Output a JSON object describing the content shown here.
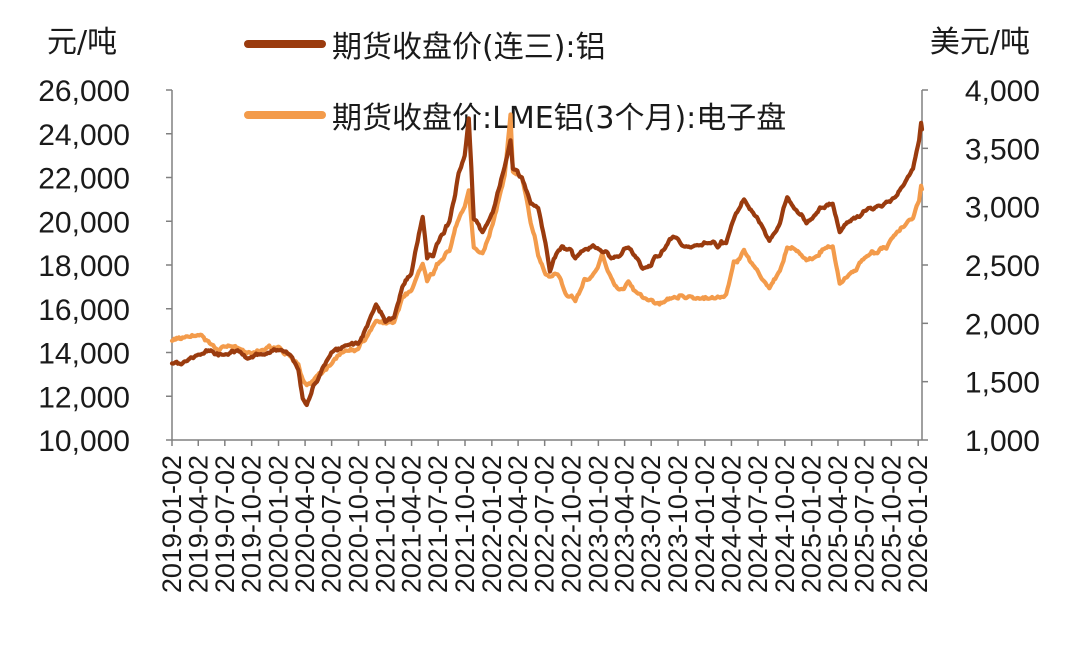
{
  "chart_data": {
    "type": "line",
    "title": "",
    "left_axis": {
      "unit": "元/吨",
      "ylim": [
        10000,
        26000
      ],
      "ticks": [
        10000,
        12000,
        14000,
        16000,
        18000,
        20000,
        22000,
        24000,
        26000
      ],
      "tick_labels": [
        "10,000",
        "12,000",
        "14,000",
        "16,000",
        "18,000",
        "20,000",
        "22,000",
        "24,000",
        "26,000"
      ]
    },
    "right_axis": {
      "unit": "美元/吨",
      "ylim": [
        1000,
        4000
      ],
      "ticks": [
        1000,
        1500,
        2000,
        2500,
        3000,
        3500,
        4000
      ],
      "tick_labels": [
        "1,000",
        "1,500",
        "2,000",
        "2,500",
        "3,000",
        "3,500",
        "4,000"
      ]
    },
    "x_axis": {
      "start": "2019-01-02",
      "end": "2026-01-15",
      "tick_labels": [
        "2019-01-02",
        "2019-04-02",
        "2019-07-02",
        "2019-10-02",
        "2020-01-02",
        "2020-04-02",
        "2020-07-02",
        "2020-10-02",
        "2021-01-02",
        "2021-04-02",
        "2021-07-02",
        "2021-10-02",
        "2022-01-02",
        "2022-04-02",
        "2022-07-02",
        "2022-10-02",
        "2023-01-02",
        "2023-04-02",
        "2023-07-02",
        "2023-10-02",
        "2024-01-02",
        "2024-04-02",
        "2024-07-02",
        "2024-10-02",
        "2025-01-02",
        "2025-04-02",
        "2025-07-02",
        "2025-10-02",
        "2026-01-02"
      ]
    },
    "legend_position": "top",
    "grid": false,
    "series": [
      {
        "name": "期货收盘价(连三):铝",
        "axis": "left",
        "color": "#9a3b0e",
        "points": [
          [
            "2019-01-02",
            13500
          ],
          [
            "2019-02-15",
            13600
          ],
          [
            "2019-04-01",
            13900
          ],
          [
            "2019-05-15",
            14100
          ],
          [
            "2019-07-01",
            13900
          ],
          [
            "2019-08-15",
            14100
          ],
          [
            "2019-10-01",
            13800
          ],
          [
            "2019-11-15",
            13900
          ],
          [
            "2020-01-02",
            14100
          ],
          [
            "2020-02-10",
            13900
          ],
          [
            "2020-03-10",
            13200
          ],
          [
            "2020-03-25",
            11900
          ],
          [
            "2020-04-08",
            11600
          ],
          [
            "2020-05-01",
            12500
          ],
          [
            "2020-06-01",
            13300
          ],
          [
            "2020-07-01",
            14000
          ],
          [
            "2020-08-15",
            14300
          ],
          [
            "2020-10-01",
            14400
          ],
          [
            "2020-11-01",
            15200
          ],
          [
            "2020-12-01",
            16200
          ],
          [
            "2021-01-02",
            15400
          ],
          [
            "2021-02-01",
            15600
          ],
          [
            "2021-03-01",
            17000
          ],
          [
            "2021-04-01",
            17600
          ],
          [
            "2021-05-10",
            20200
          ],
          [
            "2021-05-25",
            18300
          ],
          [
            "2021-06-15",
            18400
          ],
          [
            "2021-07-10",
            19300
          ],
          [
            "2021-08-10",
            20000
          ],
          [
            "2021-09-10",
            22200
          ],
          [
            "2021-10-01",
            23000
          ],
          [
            "2021-10-15",
            24700
          ],
          [
            "2021-11-01",
            20100
          ],
          [
            "2021-12-01",
            19500
          ],
          [
            "2022-01-05",
            20400
          ],
          [
            "2022-02-15",
            22500
          ],
          [
            "2022-03-07",
            23700
          ],
          [
            "2022-03-15",
            22400
          ],
          [
            "2022-04-15",
            22000
          ],
          [
            "2022-05-15",
            20800
          ],
          [
            "2022-06-10",
            20600
          ],
          [
            "2022-07-05",
            19000
          ],
          [
            "2022-07-20",
            17700
          ],
          [
            "2022-08-15",
            18600
          ],
          [
            "2022-09-15",
            18700
          ],
          [
            "2022-10-15",
            18300
          ],
          [
            "2022-11-15",
            18700
          ],
          [
            "2022-12-15",
            18900
          ],
          [
            "2023-01-15",
            18600
          ],
          [
            "2023-02-15",
            18300
          ],
          [
            "2023-03-15",
            18400
          ],
          [
            "2023-04-15",
            18800
          ],
          [
            "2023-05-15",
            18300
          ],
          [
            "2023-06-15",
            17900
          ],
          [
            "2023-07-15",
            18400
          ],
          [
            "2023-08-15",
            18700
          ],
          [
            "2023-09-15",
            19300
          ],
          [
            "2023-10-15",
            18900
          ],
          [
            "2023-11-15",
            18800
          ],
          [
            "2023-12-15",
            18900
          ],
          [
            "2024-01-15",
            19000
          ],
          [
            "2024-02-15",
            18800
          ],
          [
            "2024-03-15",
            19000
          ],
          [
            "2024-04-10",
            20100
          ],
          [
            "2024-05-15",
            21000
          ],
          [
            "2024-06-15",
            20400
          ],
          [
            "2024-07-15",
            19800
          ],
          [
            "2024-08-10",
            19100
          ],
          [
            "2024-09-15",
            19900
          ],
          [
            "2024-10-10",
            21100
          ],
          [
            "2024-11-15",
            20400
          ],
          [
            "2024-12-15",
            19900
          ],
          [
            "2025-01-15",
            20300
          ],
          [
            "2025-02-15",
            20600
          ],
          [
            "2025-03-15",
            20800
          ],
          [
            "2025-04-08",
            19500
          ],
          [
            "2025-05-15",
            20000
          ],
          [
            "2025-06-15",
            20200
          ],
          [
            "2025-07-15",
            20600
          ],
          [
            "2025-08-15",
            20700
          ],
          [
            "2025-09-15",
            20900
          ],
          [
            "2025-10-15",
            21100
          ],
          [
            "2025-11-15",
            21700
          ],
          [
            "2025-12-15",
            22400
          ],
          [
            "2026-01-05",
            23700
          ],
          [
            "2026-01-12",
            24500
          ],
          [
            "2026-01-15",
            24200
          ]
        ]
      },
      {
        "name": "期货收盘价:LME铝(3个月):电子盘",
        "axis": "right",
        "color": "#f39b4b",
        "points": [
          [
            "2019-01-02",
            1850
          ],
          [
            "2019-02-15",
            1880
          ],
          [
            "2019-04-01",
            1900
          ],
          [
            "2019-05-15",
            1820
          ],
          [
            "2019-07-01",
            1800
          ],
          [
            "2019-08-15",
            1790
          ],
          [
            "2019-10-01",
            1740
          ],
          [
            "2019-11-15",
            1770
          ],
          [
            "2020-01-02",
            1800
          ],
          [
            "2020-02-10",
            1720
          ],
          [
            "2020-03-10",
            1650
          ],
          [
            "2020-03-25",
            1520
          ],
          [
            "2020-04-08",
            1470
          ],
          [
            "2020-05-01",
            1510
          ],
          [
            "2020-06-01",
            1580
          ],
          [
            "2020-07-01",
            1650
          ],
          [
            "2020-08-15",
            1760
          ],
          [
            "2020-10-01",
            1780
          ],
          [
            "2020-11-01",
            1890
          ],
          [
            "2020-12-01",
            2020
          ],
          [
            "2021-01-02",
            2000
          ],
          [
            "2021-02-01",
            2010
          ],
          [
            "2021-03-01",
            2220
          ],
          [
            "2021-04-01",
            2280
          ],
          [
            "2021-05-10",
            2510
          ],
          [
            "2021-05-25",
            2360
          ],
          [
            "2021-06-15",
            2420
          ],
          [
            "2021-07-10",
            2530
          ],
          [
            "2021-08-10",
            2620
          ],
          [
            "2021-09-10",
            2890
          ],
          [
            "2021-10-01",
            3000
          ],
          [
            "2021-10-15",
            3140
          ],
          [
            "2021-11-01",
            2650
          ],
          [
            "2021-12-01",
            2600
          ],
          [
            "2022-01-05",
            2850
          ],
          [
            "2022-02-15",
            3270
          ],
          [
            "2022-03-07",
            3790
          ],
          [
            "2022-03-15",
            3300
          ],
          [
            "2022-04-15",
            3250
          ],
          [
            "2022-05-15",
            2860
          ],
          [
            "2022-06-10",
            2580
          ],
          [
            "2022-07-05",
            2420
          ],
          [
            "2022-07-20",
            2400
          ],
          [
            "2022-08-15",
            2420
          ],
          [
            "2022-09-15",
            2240
          ],
          [
            "2022-10-15",
            2190
          ],
          [
            "2022-11-15",
            2380
          ],
          [
            "2022-12-15",
            2420
          ],
          [
            "2023-01-15",
            2600
          ],
          [
            "2023-02-15",
            2390
          ],
          [
            "2023-03-15",
            2290
          ],
          [
            "2023-04-15",
            2360
          ],
          [
            "2023-05-15",
            2260
          ],
          [
            "2023-06-15",
            2210
          ],
          [
            "2023-07-15",
            2170
          ],
          [
            "2023-08-15",
            2180
          ],
          [
            "2023-09-15",
            2220
          ],
          [
            "2023-10-15",
            2240
          ],
          [
            "2023-11-15",
            2230
          ],
          [
            "2023-12-15",
            2210
          ],
          [
            "2024-01-15",
            2210
          ],
          [
            "2024-02-15",
            2230
          ],
          [
            "2024-03-15",
            2250
          ],
          [
            "2024-04-10",
            2530
          ],
          [
            "2024-05-15",
            2630
          ],
          [
            "2024-06-15",
            2500
          ],
          [
            "2024-07-15",
            2380
          ],
          [
            "2024-08-10",
            2300
          ],
          [
            "2024-09-15",
            2450
          ],
          [
            "2024-10-10",
            2650
          ],
          [
            "2024-11-15",
            2620
          ],
          [
            "2024-12-15",
            2540
          ],
          [
            "2025-01-15",
            2570
          ],
          [
            "2025-02-15",
            2640
          ],
          [
            "2025-03-15",
            2660
          ],
          [
            "2025-04-08",
            2340
          ],
          [
            "2025-05-15",
            2430
          ],
          [
            "2025-06-15",
            2520
          ],
          [
            "2025-07-15",
            2580
          ],
          [
            "2025-08-15",
            2600
          ],
          [
            "2025-09-15",
            2640
          ],
          [
            "2025-10-15",
            2760
          ],
          [
            "2025-11-15",
            2830
          ],
          [
            "2025-12-15",
            2900
          ],
          [
            "2026-01-05",
            3050
          ],
          [
            "2026-01-12",
            3180
          ],
          [
            "2026-01-15",
            3150
          ]
        ]
      }
    ]
  }
}
